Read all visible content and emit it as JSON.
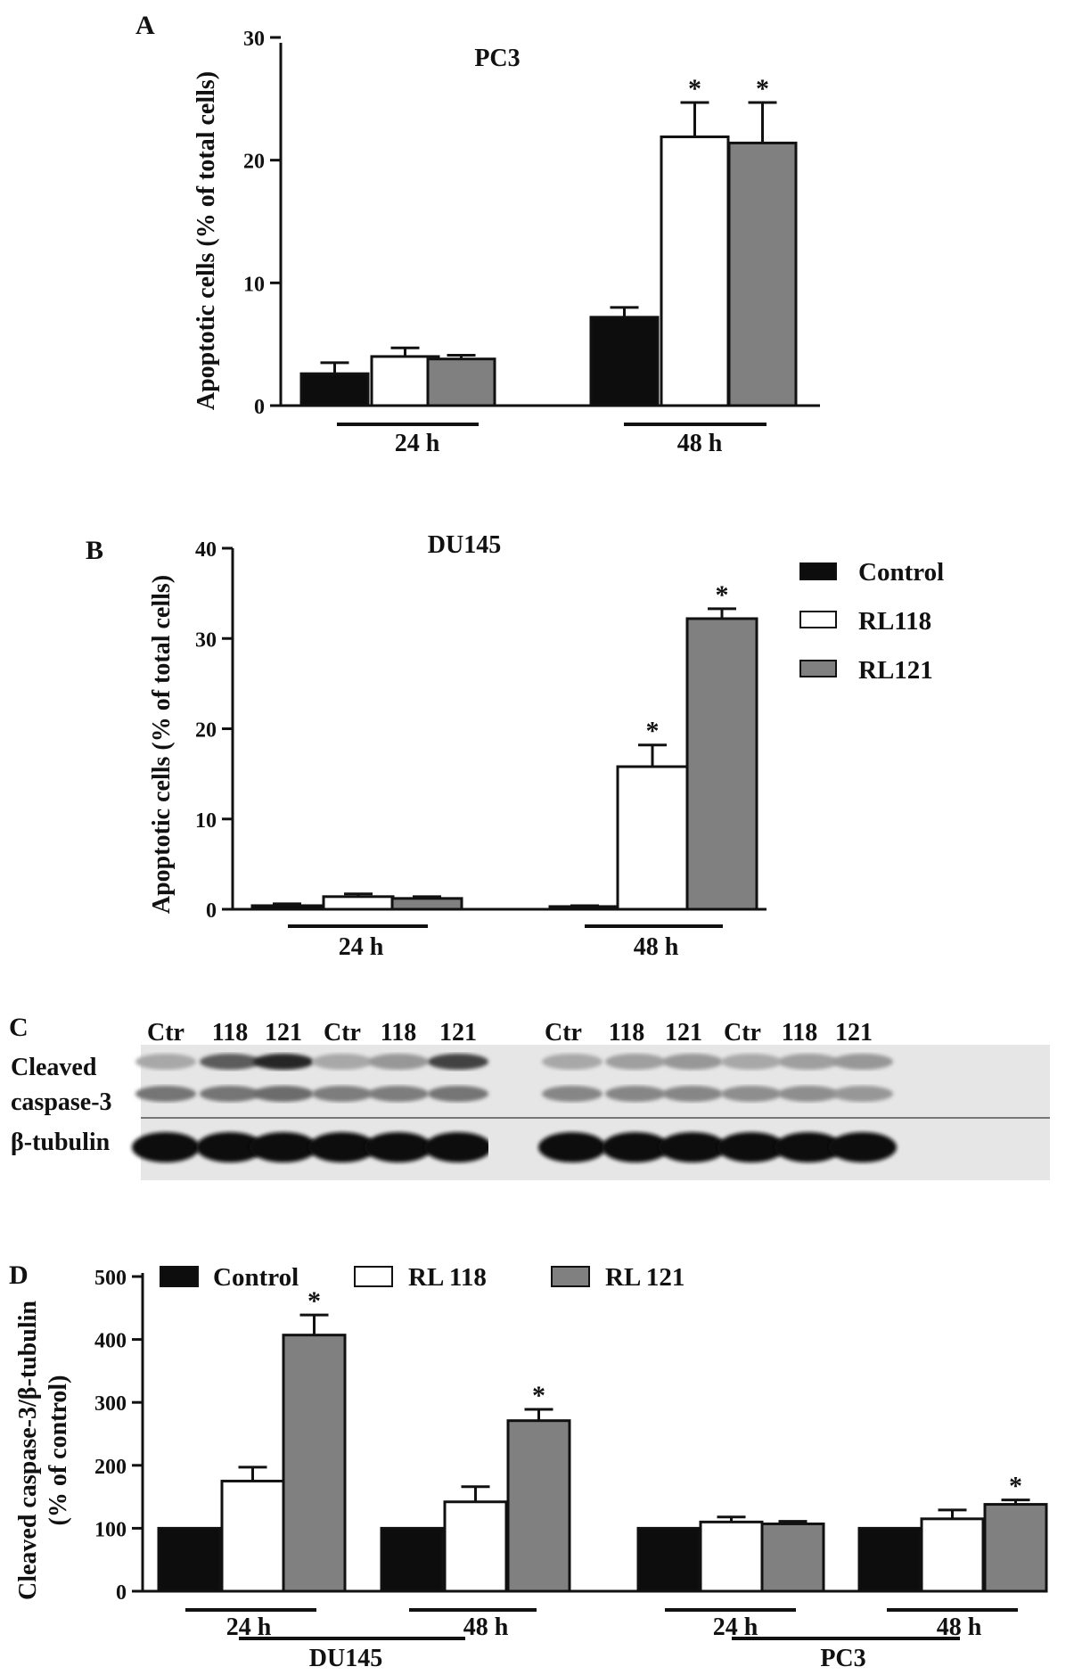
{
  "colors": {
    "control": "#0d0d0d",
    "rl118": "#ffffff",
    "rl121": "#808080",
    "edge": "#111111"
  },
  "chart_data": [
    {
      "panel": "A",
      "type": "bar",
      "title": "PC3",
      "ylabel": "Apoptotic cells (% of total cells)",
      "ylim": [
        0,
        30
      ],
      "yticks": [
        "0",
        "10",
        "20",
        "30"
      ],
      "groups": [
        "24 h",
        "48 h"
      ],
      "series": [
        {
          "values": [
            2.6,
            7.2
          ],
          "errors": [
            0.9,
            0.8
          ],
          "sig": [
            "",
            ""
          ]
        },
        {
          "values": [
            4.0,
            21.9
          ],
          "errors": [
            0.7,
            2.8
          ],
          "sig": [
            "",
            "*"
          ]
        },
        {
          "values": [
            3.8,
            21.4
          ],
          "errors": [
            0.3,
            3.3
          ],
          "sig": [
            "",
            "*"
          ]
        }
      ]
    },
    {
      "panel": "B",
      "type": "bar",
      "title": "DU145",
      "ylabel": "Apoptotic cells (% of total cells)",
      "ylim": [
        0,
        40
      ],
      "yticks": [
        "0",
        "10",
        "20",
        "30",
        "40"
      ],
      "groups": [
        "24 h",
        "48 h"
      ],
      "legend": [
        "Control",
        "RL118",
        "RL121"
      ],
      "series": [
        {
          "values": [
            0.4,
            0.3
          ],
          "errors": [
            0.2,
            0.1
          ],
          "sig": [
            "",
            ""
          ]
        },
        {
          "values": [
            1.4,
            15.8
          ],
          "errors": [
            0.3,
            2.4
          ],
          "sig": [
            "",
            "*"
          ]
        },
        {
          "values": [
            1.2,
            32.2
          ],
          "errors": [
            0.2,
            1.1
          ],
          "sig": [
            "",
            "*"
          ]
        }
      ]
    },
    {
      "panel": "D",
      "type": "bar",
      "ylabel_line1": "Cleaved caspase-3/β-tubulin",
      "ylabel_line2": "(% of control)",
      "ylim": [
        0,
        500
      ],
      "yticks": [
        "0",
        "100",
        "200",
        "300",
        "400",
        "500"
      ],
      "groups": [
        "24 h",
        "48 h",
        "24 h",
        "48 h"
      ],
      "cell_lines": [
        "DU145",
        "PC3"
      ],
      "legend": [
        "Control",
        "RL 118",
        "RL 121"
      ],
      "series": [
        {
          "values": [
            100,
            100,
            100,
            100
          ],
          "errors": [
            0,
            0,
            0,
            0
          ],
          "sig": [
            "",
            "",
            "",
            ""
          ]
        },
        {
          "values": [
            175,
            142,
            110,
            115
          ],
          "errors": [
            22,
            24,
            8,
            14
          ],
          "sig": [
            "",
            "",
            "",
            ""
          ]
        },
        {
          "values": [
            407,
            271,
            107,
            138
          ],
          "errors": [
            32,
            18,
            4,
            7
          ],
          "sig": [
            "*",
            "*",
            "",
            "*"
          ]
        }
      ]
    }
  ],
  "panel_labels": {
    "a": "A",
    "b": "B",
    "c": "C",
    "d": "D"
  },
  "blot": {
    "lanes_left": [
      "Ctr",
      "118",
      "121",
      "Ctr",
      "118",
      "121"
    ],
    "lanes_right": [
      "Ctr",
      "118",
      "121",
      "Ctr",
      "118",
      "121"
    ],
    "row1_label_line1": "Cleaved",
    "row1_label_line2": "caspase-3",
    "row2_label": "β-tubulin"
  }
}
